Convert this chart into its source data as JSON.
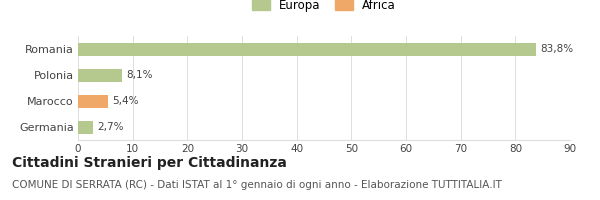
{
  "categories": [
    "Romania",
    "Polonia",
    "Marocco",
    "Germania"
  ],
  "values": [
    83.8,
    8.1,
    5.4,
    2.7
  ],
  "labels": [
    "83,8%",
    "8,1%",
    "5,4%",
    "2,7%"
  ],
  "colors": [
    "#b5c98e",
    "#b5c98e",
    "#f0a868",
    "#b5c98e"
  ],
  "legend": [
    {
      "label": "Europa",
      "color": "#b5c98e"
    },
    {
      "label": "Africa",
      "color": "#f0a868"
    }
  ],
  "xlim": [
    0,
    90
  ],
  "xticks": [
    0,
    10,
    20,
    30,
    40,
    50,
    60,
    70,
    80,
    90
  ],
  "title": "Cittadini Stranieri per Cittadinanza",
  "subtitle": "COMUNE DI SERRATA (RC) - Dati ISTAT al 1° gennaio di ogni anno - Elaborazione TUTTITALIA.IT",
  "title_fontsize": 10,
  "subtitle_fontsize": 7.5,
  "background_color": "#ffffff",
  "bar_height": 0.5,
  "grid_color": "#dddddd"
}
